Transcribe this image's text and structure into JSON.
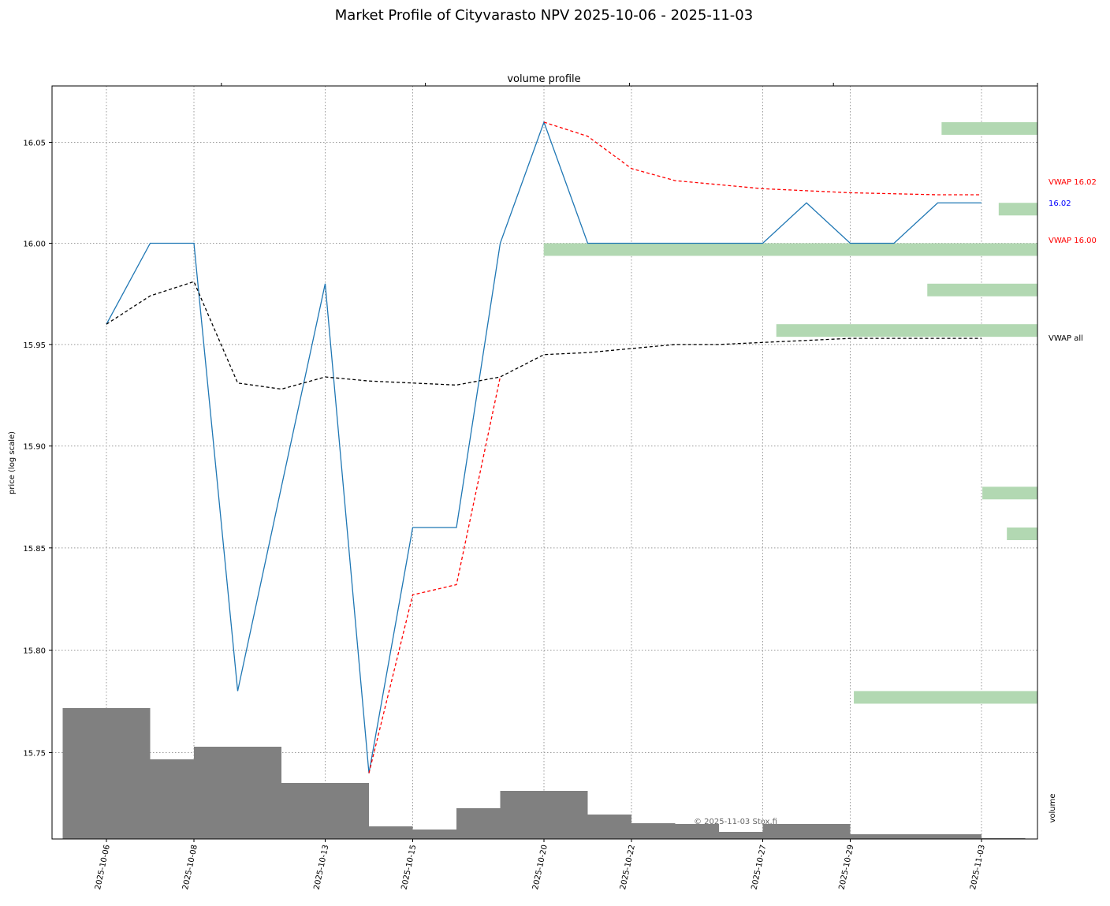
{
  "chart_data": {
    "type": "line",
    "title": "Market Profile of Cityvarasto NPV  2025-10-06  -  2025-11-03",
    "y_label": "price (log scale)",
    "yscale": "log",
    "grid": true,
    "categories": [
      "2025-10-06",
      null,
      "2025-10-08",
      null,
      null,
      "2025-10-13",
      null,
      "2025-10-15",
      null,
      null,
      "2025-10-20",
      null,
      "2025-10-22",
      null,
      null,
      "2025-10-27",
      null,
      "2025-10-29",
      null,
      null,
      "2025-11-03"
    ],
    "ylim": [
      15.708,
      16.078
    ],
    "yticks": [
      15.75,
      {
        "value": 15.8,
        "label": "15.80"
      },
      15.85,
      {
        "value": 15.9,
        "label": "15.90"
      },
      15.95,
      {
        "value": 16.0,
        "label": "16.00"
      },
      16.05
    ],
    "y2_label": "volume",
    "y2lim": [
      0,
      955
    ],
    "series": [
      {
        "color": "#1f77b4",
        "style": "solid",
        "values": [
          15.96,
          16.0,
          16.0,
          15.78,
          15.88,
          15.98,
          15.74,
          15.86,
          15.86,
          16.0,
          16.06,
          16.0,
          16.0,
          16.0,
          16.0,
          16.0,
          16.02,
          16.0,
          16.0,
          16.02,
          16.02
        ]
      },
      {
        "color": "#000000",
        "style": "dashed",
        "values": [
          15.96,
          15.974,
          15.981,
          15.931,
          15.928,
          15.934,
          15.932,
          15.931,
          15.93,
          15.934,
          15.945,
          15.946,
          15.948,
          15.95,
          15.95,
          15.951,
          15.952,
          15.953,
          15.953,
          15.953,
          15.953
        ]
      },
      {
        "color": "#ff0000",
        "style": "dashed",
        "values": [
          null,
          null,
          null,
          null,
          null,
          null,
          15.74,
          15.827,
          15.832,
          15.934,
          null,
          null,
          null,
          null,
          null,
          null,
          null,
          null,
          null,
          null,
          null
        ]
      },
      {
        "color": "#ff0000",
        "style": "dashed",
        "values": [
          null,
          null,
          null,
          null,
          null,
          null,
          null,
          null,
          null,
          null,
          16.06,
          16.053,
          16.037,
          16.031,
          16.029,
          16.027,
          16.026,
          16.025,
          16.0245,
          16.024,
          16.024
        ]
      },
      {
        "color": "#808080",
        "style": "bar",
        "axis": "y2",
        "values": [
          166,
          101,
          80,
          117,
          50,
          71,
          16,
          10,
          12,
          39,
          61,
          31,
          20,
          19,
          5,
          9,
          19,
          6,
          4,
          6,
          1
        ]
      }
    ],
    "volume_profile": {
      "title": "volume profile",
      "color": "#b2d8b2",
      "xlim": [
        0,
        4.83
      ],
      "xticks": [
        0,
        1,
        2,
        3,
        4
      ],
      "levels": [
        16.06,
        16.02,
        16.0,
        15.98,
        15.96,
        15.88,
        15.86,
        15.78
      ],
      "values": [
        0.47,
        0.19,
        2.42,
        0.54,
        1.28,
        0.27,
        0.15,
        0.9
      ]
    },
    "annotations": [
      {
        "text": "VWAP 16.02",
        "color": "#ff0000"
      },
      {
        "text": "16.02",
        "color": "#0000ff"
      },
      {
        "text": "VWAP 16.00",
        "color": "#ff0000"
      },
      {
        "text": "VWAP all",
        "color": "#000000"
      }
    ],
    "watermark": "© 2025-11-03 Stox.fi"
  }
}
